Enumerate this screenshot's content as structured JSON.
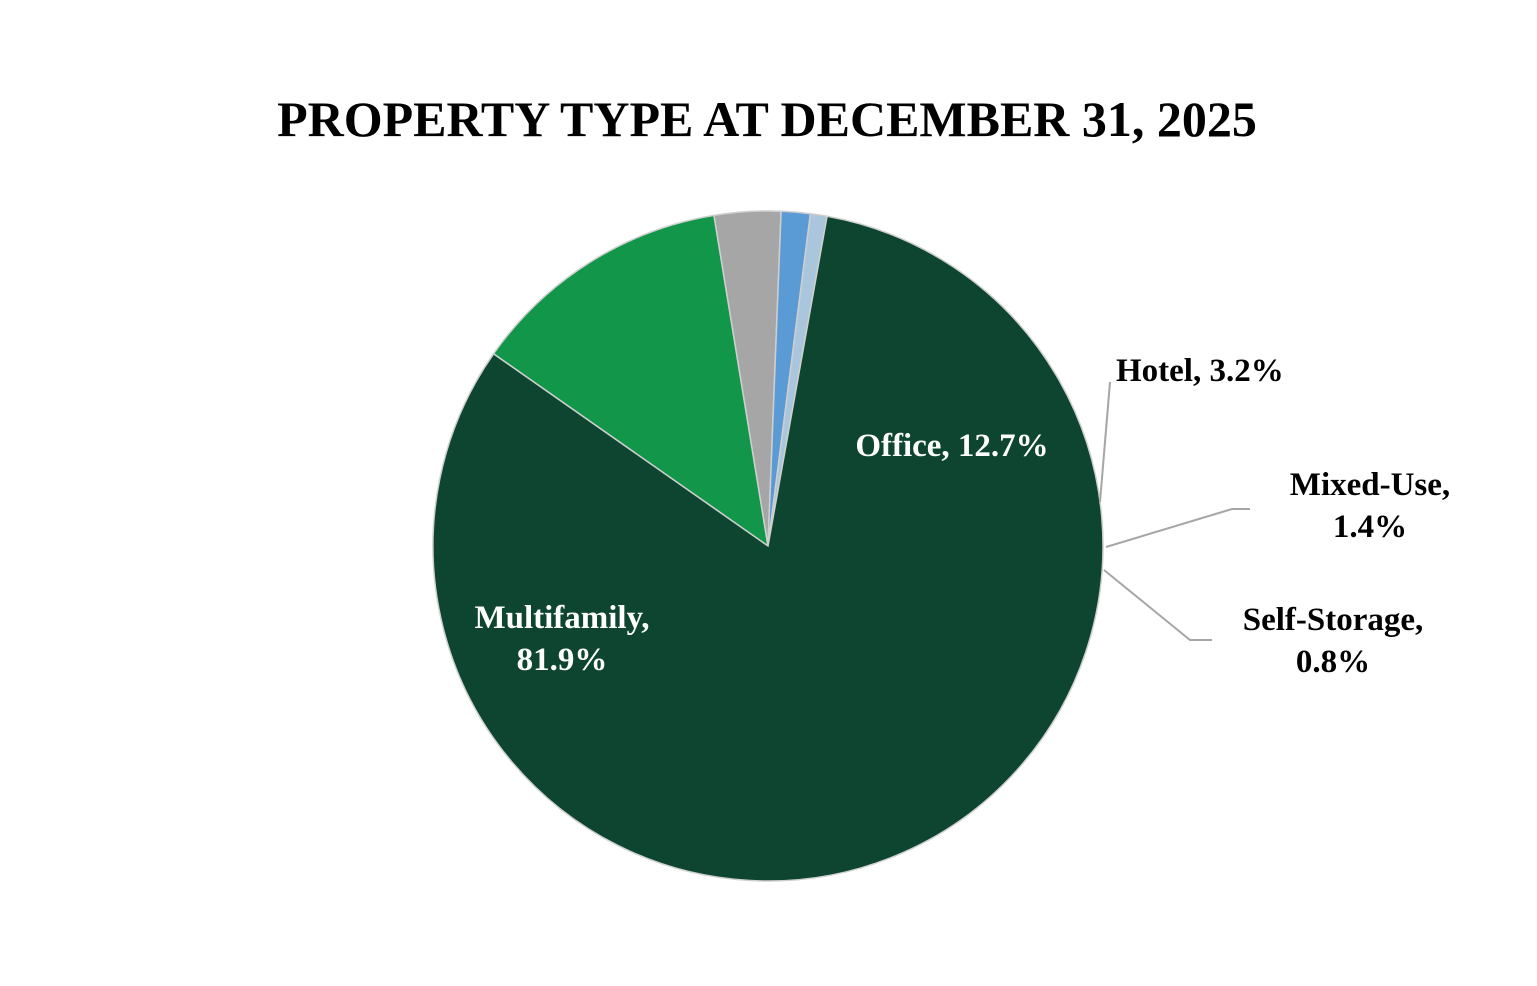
{
  "chart_data": {
    "type": "pie",
    "title": "PROPERTY TYPE AT DECEMBER 31, 2025",
    "slices": [
      {
        "name": "Office",
        "value": 12.7,
        "color": "#12964a",
        "label_lines": [
          "Office, 12.7%"
        ]
      },
      {
        "name": "Hotel",
        "value": 3.2,
        "color": "#a6a6a6",
        "label_lines": [
          "Hotel, 3.2%"
        ]
      },
      {
        "name": "Mixed-Use",
        "value": 1.4,
        "color": "#5b9bd5",
        "label_lines": [
          "Mixed-Use,",
          "1.4%"
        ]
      },
      {
        "name": "Self-Storage",
        "value": 0.8,
        "color": "#a9c6dc",
        "label_lines": [
          "Self-Storage,",
          "0.8%"
        ]
      },
      {
        "name": "Multifamily",
        "value": 81.9,
        "color": "#0d4530",
        "label_lines": [
          "Multifamily,",
          "81.9%"
        ]
      }
    ],
    "unit": "%",
    "legend": "none",
    "data_labels": true
  }
}
